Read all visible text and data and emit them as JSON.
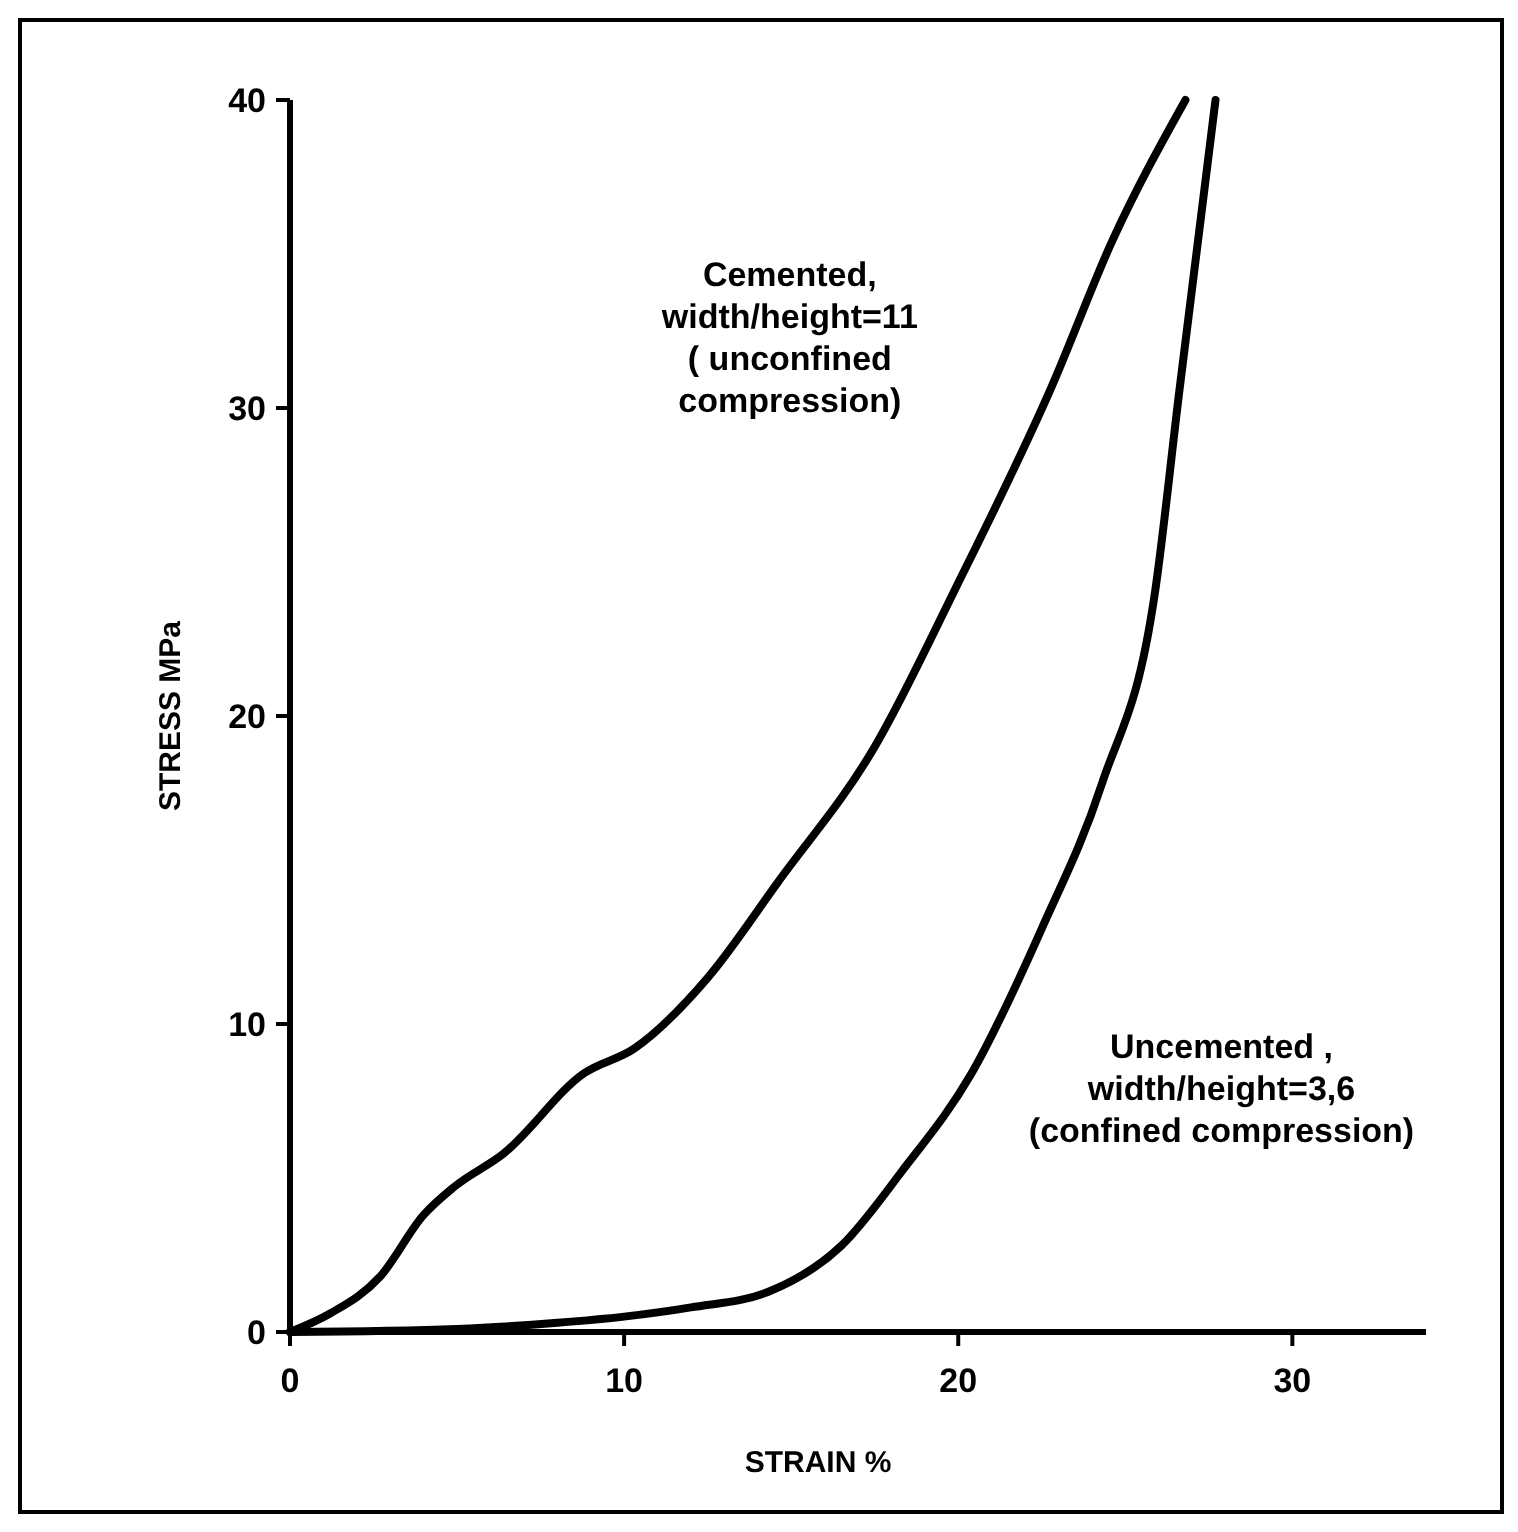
{
  "chart_data": {
    "type": "line",
    "xlabel": "STRAIN %",
    "ylabel": "STRESS MPa",
    "xlim": [
      0,
      34
    ],
    "ylim": [
      0,
      40
    ],
    "xticks": [
      0,
      10,
      20,
      30
    ],
    "yticks": [
      0,
      10,
      20,
      30,
      40
    ],
    "grid": false,
    "marker": "none",
    "line_style": "solid",
    "series": [
      {
        "color": "#000000",
        "x": [
          0,
          1.2,
          2.7,
          4.0,
          4.9,
          6.4,
          8.8,
          10.3,
          12.5,
          14.6,
          17.5,
          19.9,
          22.8,
          24.6,
          26.8
        ],
        "values": [
          0,
          0.6,
          1.8,
          3.8,
          4.7,
          5.8,
          8.4,
          9.2,
          11.5,
          14.6,
          19.0,
          24.1,
          30.7,
          35.4,
          40
        ]
      },
      {
        "color": "#000000",
        "x": [
          0,
          5,
          8,
          10,
          12,
          14.3,
          16.5,
          18.3,
          20.4,
          22.5,
          24.3,
          25.9,
          26.6,
          27.7
        ],
        "values": [
          0,
          0.1,
          0.3,
          0.5,
          0.8,
          1.3,
          2.8,
          5.2,
          8.4,
          13.1,
          17.8,
          24.1,
          30.4,
          40
        ]
      }
    ],
    "annotations": [
      "Cemented,\nwidth/height=11\n( unconfined\ncompression)",
      "Uncemented ,\nwidth/height=3,6\n(confined compression)"
    ]
  }
}
